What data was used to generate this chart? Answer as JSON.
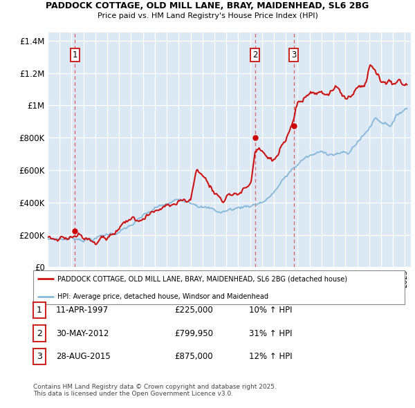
{
  "title_line1": "PADDOCK COTTAGE, OLD MILL LANE, BRAY, MAIDENHEAD, SL6 2BG",
  "title_line2": "Price paid vs. HM Land Registry's House Price Index (HPI)",
  "ylim": [
    0,
    1450000
  ],
  "yticks": [
    0,
    200000,
    400000,
    600000,
    800000,
    1000000,
    1200000,
    1400000
  ],
  "sales": [
    {
      "label": "1",
      "date_val": 1997.28,
      "price": 225000,
      "date_str": "11-APR-1997",
      "pct_str": "10% ↑ HPI"
    },
    {
      "label": "2",
      "date_val": 2012.41,
      "price": 799950,
      "date_str": "30-MAY-2012",
      "pct_str": "31% ↑ HPI"
    },
    {
      "label": "3",
      "date_val": 2015.66,
      "price": 875000,
      "date_str": "28-AUG-2015",
      "pct_str": "12% ↑ HPI"
    }
  ],
  "vline_color": "#dd4444",
  "dot_color": "#cc0000",
  "hpi_line_color": "#89b9d9",
  "price_line_color": "#cc1111",
  "legend_label_price": "PADDOCK COTTAGE, OLD MILL LANE, BRAY, MAIDENHEAD, SL6 2BG (detached house)",
  "legend_label_hpi": "HPI: Average price, detached house, Windsor and Maidenhead",
  "footnote": "Contains HM Land Registry data © Crown copyright and database right 2025.\nThis data is licensed under the Open Government Licence v3.0.",
  "plot_bg_color": "#dce9f5",
  "table_rows": [
    [
      "1",
      "11-APR-1997",
      "£225,000",
      "10% ↑ HPI"
    ],
    [
      "2",
      "30-MAY-2012",
      "£799,950",
      "31% ↑ HPI"
    ],
    [
      "3",
      "28-AUG-2015",
      "£875,000",
      "12% ↑ HPI"
    ]
  ],
  "hpi_anchors_x": [
    1995.0,
    1997.0,
    1998.0,
    1999.0,
    2000.0,
    2001.5,
    2002.5,
    2004.0,
    2005.5,
    2006.5,
    2007.5,
    2008.5,
    2009.5,
    2010.5,
    2011.5,
    2012.5,
    2013.5,
    2014.5,
    2015.5,
    2016.5,
    2017.5,
    2018.5,
    2019.5,
    2020.3,
    2021.0,
    2021.8,
    2022.5,
    2023.0,
    2023.8,
    2024.5,
    2025.0
  ],
  "hpi_anchors_y": [
    175000,
    188000,
    195000,
    205000,
    225000,
    265000,
    305000,
    365000,
    395000,
    415000,
    425000,
    395000,
    370000,
    390000,
    410000,
    435000,
    470000,
    555000,
    640000,
    715000,
    735000,
    745000,
    755000,
    740000,
    820000,
    880000,
    970000,
    955000,
    950000,
    1010000,
    1050000
  ],
  "price_anchors_x": [
    1995.0,
    1996.5,
    1997.28,
    1998.0,
    1999.0,
    2000.5,
    2002.0,
    2003.5,
    2005.0,
    2006.0,
    2007.0,
    2007.5,
    2008.2,
    2009.0,
    2009.8,
    2010.5,
    2011.3,
    2012.1,
    2012.41,
    2012.7,
    2013.2,
    2013.8,
    2014.3,
    2015.0,
    2015.4,
    2015.66,
    2016.0,
    2016.5,
    2017.2,
    2018.0,
    2018.7,
    2019.5,
    2020.0,
    2020.6,
    2021.2,
    2021.8,
    2022.1,
    2022.5,
    2023.0,
    2023.5,
    2024.0,
    2024.5,
    2025.0
  ],
  "price_anchors_y": [
    185000,
    200000,
    225000,
    238000,
    255000,
    290000,
    355000,
    415000,
    460000,
    490000,
    510000,
    685000,
    640000,
    540000,
    510000,
    560000,
    590000,
    625000,
    799950,
    810000,
    760000,
    720000,
    740000,
    820000,
    855000,
    875000,
    990000,
    1010000,
    1020000,
    1005000,
    995000,
    1010000,
    960000,
    1000000,
    1055000,
    1100000,
    1220000,
    1165000,
    1105000,
    1115000,
    1115000,
    1140000,
    1125000
  ]
}
